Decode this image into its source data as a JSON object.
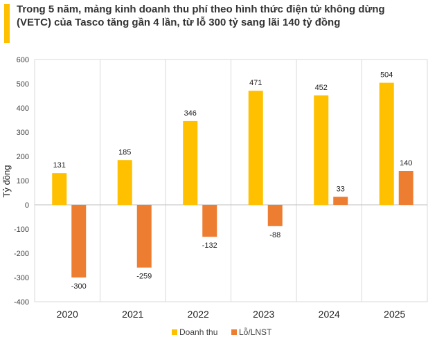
{
  "title": "Trong 5 năm, mảng kinh doanh thu phí theo hình thức điện tử không dừng (VETC) của Tasco tăng gần 4 lần, từ lỗ 300 tỷ sang lãi 140 tỷ đồng",
  "accent_color": "#ffc000",
  "chart_data": {
    "type": "bar",
    "categories": [
      "2020",
      "2021",
      "2022",
      "2023",
      "2024",
      "2025"
    ],
    "series": [
      {
        "name": "Doanh thu",
        "color": "#ffc000",
        "values": [
          131,
          185,
          346,
          471,
          452,
          504
        ]
      },
      {
        "name": "Lỗ/LNST",
        "color": "#ed7d31",
        "values": [
          -300,
          -259,
          -132,
          -88,
          33,
          140
        ]
      }
    ],
    "ylabel": "Tỷ đồng",
    "xlabel": "",
    "ylim": [
      -400,
      600
    ],
    "yticks": [
      -400,
      -300,
      -200,
      -100,
      0,
      100,
      200,
      300,
      400,
      500,
      600
    ],
    "grid": "vertical category separators",
    "legend": "bottom-center"
  }
}
